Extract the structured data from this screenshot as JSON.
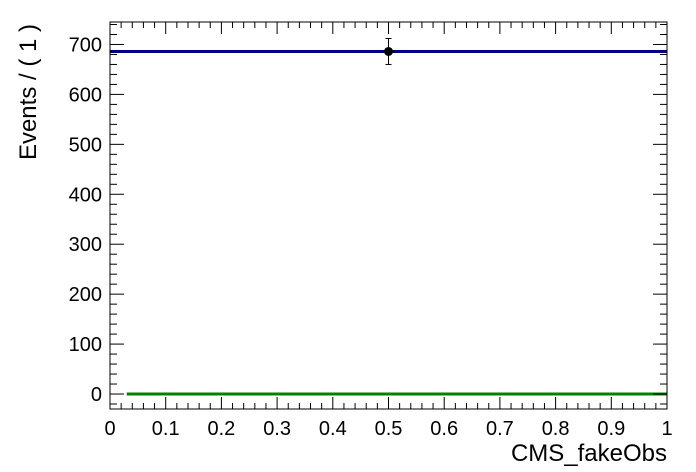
{
  "chart_data": {
    "type": "scatter",
    "xlabel": "CMS_fakeObs",
    "ylabel": "Events / ( 1 )",
    "xlim": [
      0,
      1
    ],
    "ylim": [
      -30,
      745
    ],
    "x_ticks": [
      "0",
      "0.1",
      "0.2",
      "0.3",
      "0.4",
      "0.5",
      "0.6",
      "0.7",
      "0.8",
      "0.9",
      "1"
    ],
    "y_ticks": [
      "0",
      "100",
      "200",
      "300",
      "400",
      "500",
      "600",
      "700"
    ],
    "series": [
      {
        "type": "points",
        "color": "#000000",
        "points": [
          {
            "x": 0.5,
            "y": 686,
            "err_low": 26,
            "err_high": 26
          }
        ]
      },
      {
        "type": "hline",
        "color": "#000080",
        "y": 686,
        "x_start": 0,
        "x_end": 1
      },
      {
        "type": "hline",
        "color": "#008000",
        "y": 0,
        "x_start": 0.03,
        "x_end": 1
      }
    ],
    "grid": false,
    "legend": "none"
  }
}
